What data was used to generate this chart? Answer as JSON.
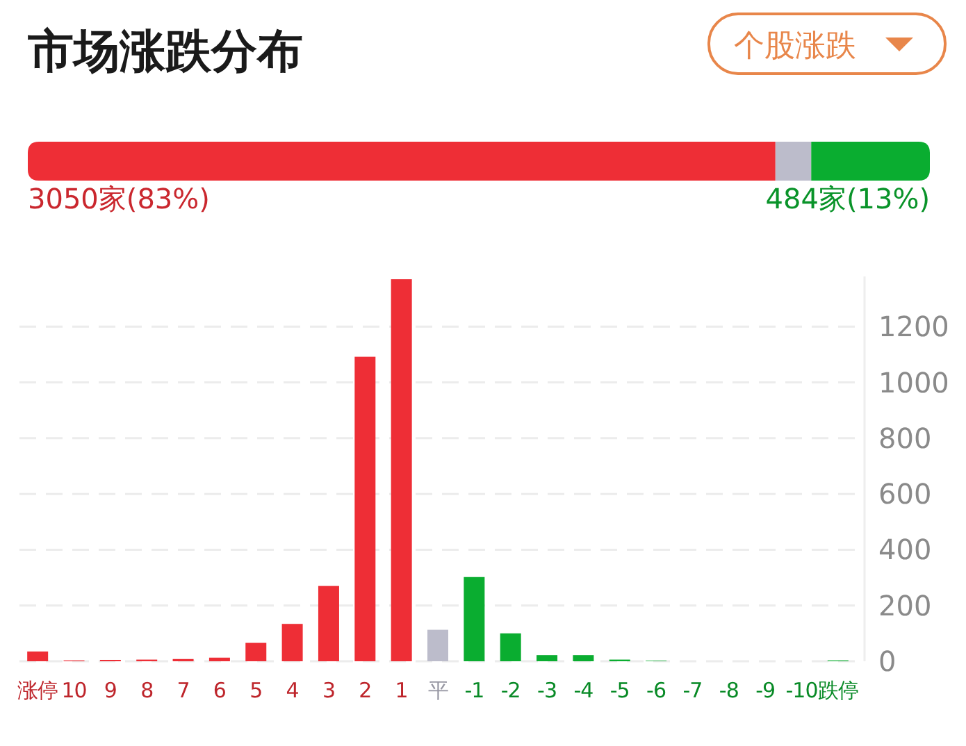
{
  "chart_data": [
    {
      "type": "bar",
      "orientation": "horizontal",
      "stacked": true,
      "title": "市场涨跌分布",
      "annotations": [
        "个股涨跌"
      ],
      "categories": [
        null
      ],
      "series": [
        {
          "color": "#ee2e36",
          "values": [
            3050
          ],
          "value_labels": [
            "3050家(83%)"
          ]
        },
        {
          "color": "#bcbccb",
          "values": [
            146
          ],
          "value_labels": [
            null
          ]
        },
        {
          "color": "#0aad30",
          "values": [
            484
          ],
          "value_labels": [
            "484家(13%)"
          ]
        }
      ]
    },
    {
      "type": "bar",
      "categories": [
        "涨停",
        "10",
        "9",
        "8",
        "7",
        "6",
        "5",
        "4",
        "3",
        "2",
        "1",
        "平",
        "-1",
        "-2",
        "-3",
        "-4",
        "-5",
        "-6",
        "-7",
        "-8",
        "-9",
        "-10",
        "跌停"
      ],
      "values": [
        35,
        3,
        5,
        6,
        8,
        13,
        66,
        134,
        270,
        1092,
        1370,
        113,
        302,
        100,
        22,
        22,
        6,
        2,
        0,
        0,
        0,
        0,
        3
      ],
      "colors": [
        "#ee2e36",
        "#ee2e36",
        "#ee2e36",
        "#ee2e36",
        "#ee2e36",
        "#ee2e36",
        "#ee2e36",
        "#ee2e36",
        "#ee2e36",
        "#ee2e36",
        "#ee2e36",
        "#bcbccb",
        "#0aad30",
        "#0aad30",
        "#0aad30",
        "#0aad30",
        "#0aad30",
        "#0aad30",
        "#0aad30",
        "#0aad30",
        "#0aad30",
        "#0aad30",
        "#0aad30"
      ],
      "ylim": [
        0,
        1380
      ],
      "yticks": [
        0,
        200,
        400,
        600,
        800,
        1000,
        1200
      ],
      "grid": "y"
    }
  ]
}
